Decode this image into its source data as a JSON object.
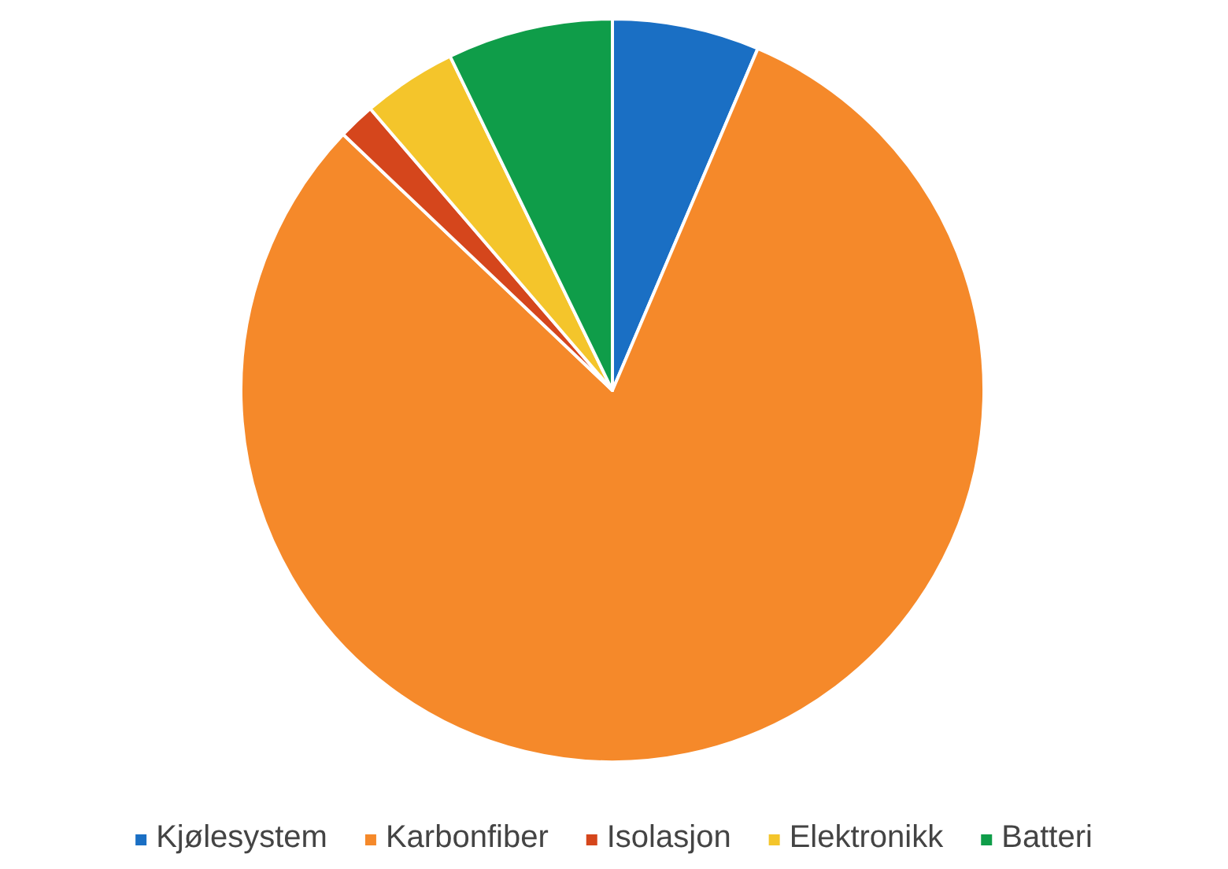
{
  "chart_data": {
    "type": "pie",
    "categories": [
      "Kjølesystem",
      "Karbonfiber",
      "Isolasjon",
      "Elektronikk",
      "Batteri"
    ],
    "values": [
      6.4,
      80.7,
      1.6,
      4.1,
      7.2
    ],
    "colors": [
      "#1a6fc4",
      "#f5892a",
      "#d5461c",
      "#f4c52b",
      "#0f9d49"
    ],
    "legend": "bottom"
  }
}
